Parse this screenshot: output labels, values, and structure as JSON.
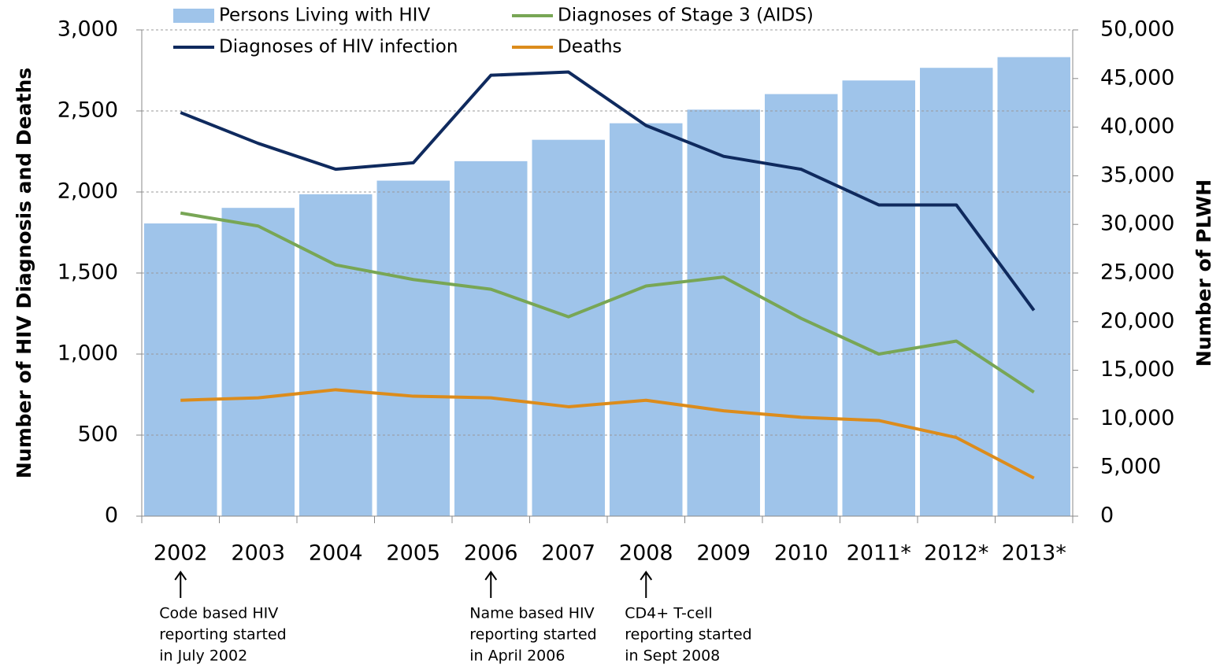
{
  "chart_data": {
    "type": "bar",
    "categories": [
      "2002",
      "2003",
      "2004",
      "2005",
      "2006",
      "2007",
      "2008",
      "2009",
      "2010",
      "2011*",
      "2012*",
      "2013*"
    ],
    "series": [
      {
        "name": "Persons Living with HIV",
        "type": "bar",
        "axis": "y2",
        "color": "#9fc4ea",
        "values": [
          30100,
          31700,
          33100,
          34500,
          36500,
          38700,
          40400,
          41800,
          43400,
          44800,
          46100,
          47200
        ]
      },
      {
        "name": "Diagnoses of HIV infection",
        "type": "line",
        "color": "#0f2a5e",
        "values": [
          2490,
          2300,
          2140,
          2180,
          2720,
          2740,
          2410,
          2220,
          2140,
          1920,
          1920,
          1270
        ]
      },
      {
        "name": "Diagnoses of Stage 3 (AIDS)",
        "type": "line",
        "color": "#78a655",
        "values": [
          1870,
          1790,
          1550,
          1460,
          1400,
          1230,
          1420,
          1475,
          1220,
          1000,
          1080,
          765
        ]
      },
      {
        "name": "Deaths",
        "type": "line",
        "color": "#dc8c1c",
        "values": [
          715,
          730,
          780,
          740,
          730,
          675,
          715,
          650,
          610,
          590,
          485,
          235
        ]
      }
    ],
    "y_label": "Number of HIV Diagnosis and Deaths",
    "y2_label": "Number of PLWH",
    "ylim": [
      0,
      3000
    ],
    "yticks": [
      0,
      500,
      {
        "value": 1000,
        "label": "1,000"
      },
      {
        "value": 1500,
        "label": "1,500"
      },
      {
        "value": 2000,
        "label": "2,000"
      },
      {
        "value": 2500,
        "label": "2,500"
      },
      {
        "value": 3000,
        "label": "3,000"
      }
    ],
    "y2lim": [
      0,
      50000
    ],
    "y2ticks": [
      0,
      {
        "value": 5000,
        "label": "5,000"
      },
      {
        "value": 10000,
        "label": "10,000"
      },
      {
        "value": 15000,
        "label": "15,000"
      },
      {
        "value": 20000,
        "label": "20,000"
      },
      {
        "value": 25000,
        "label": "25,000"
      },
      {
        "value": 30000,
        "label": "30,000"
      },
      {
        "value": 35000,
        "label": "35,000"
      },
      {
        "value": 40000,
        "label": "40,000"
      },
      {
        "value": 45000,
        "label": "45,000"
      },
      {
        "value": 50000,
        "label": "50,000"
      }
    ],
    "grid": true,
    "legend": "top",
    "annotations": [
      {
        "x": "2002",
        "lines": [
          "Code based HIV",
          "reporting started",
          "in July 2002"
        ]
      },
      {
        "x": "2006",
        "lines": [
          "Name based HIV",
          "reporting started",
          "in April 2006"
        ]
      },
      {
        "x": "2008",
        "lines": [
          "CD4+ T-cell",
          "reporting started",
          "in Sept 2008"
        ]
      }
    ]
  }
}
